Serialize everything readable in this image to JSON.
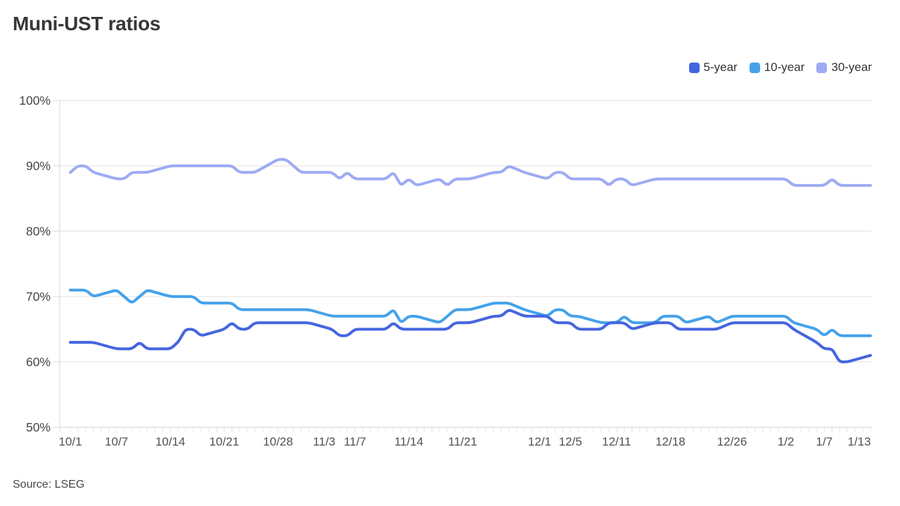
{
  "header": {
    "title": "Muni-UST ratios"
  },
  "footer": {
    "source": "Source: LSEG"
  },
  "theme": {
    "background": "#ffffff",
    "grid_color": "#ececec",
    "axis_color": "#e2e2e2",
    "tick_color": "#e9e9e9",
    "y_label_color": "#454545",
    "x_label_color": "#515151",
    "title_color": "#373737"
  },
  "chart_data": {
    "type": "line",
    "title": "Muni-UST ratios",
    "xlabel": "",
    "ylabel": "",
    "grid": "horizontal",
    "legend_position": "top-right",
    "ylim": [
      50,
      100
    ],
    "y_ticks": [
      {
        "label": "100%",
        "value": 100
      },
      {
        "label": "90%",
        "value": 90
      },
      {
        "label": "80%",
        "value": 80
      },
      {
        "label": "70%",
        "value": 70
      },
      {
        "label": "60%",
        "value": 60
      },
      {
        "label": "50%",
        "value": 50
      }
    ],
    "x_total_days": 104,
    "x_tick_labels": [
      {
        "label": "10/1",
        "day": 0
      },
      {
        "label": "10/7",
        "day": 6
      },
      {
        "label": "10/14",
        "day": 13
      },
      {
        "label": "10/21",
        "day": 20
      },
      {
        "label": "10/28",
        "day": 27
      },
      {
        "label": "11/3",
        "day": 33
      },
      {
        "label": "11/7",
        "day": 37
      },
      {
        "label": "11/14",
        "day": 44
      },
      {
        "label": "11/21",
        "day": 51
      },
      {
        "label": "12/1",
        "day": 61
      },
      {
        "label": "12/5",
        "day": 65
      },
      {
        "label": "12/11",
        "day": 71
      },
      {
        "label": "12/18",
        "day": 78
      },
      {
        "label": "12/26",
        "day": 86
      },
      {
        "label": "1/2",
        "day": 93
      },
      {
        "label": "1/7",
        "day": 98
      },
      {
        "label": "1/13",
        "day": 104
      }
    ],
    "dates": [
      "10/1",
      "10/2",
      "10/3",
      "10/4",
      "10/7",
      "10/8",
      "10/9",
      "10/10",
      "10/11",
      "10/14",
      "10/15",
      "10/16",
      "10/17",
      "10/18",
      "10/21",
      "10/22",
      "10/23",
      "10/24",
      "10/25",
      "10/28",
      "10/29",
      "10/30",
      "10/31",
      "11/1",
      "11/4",
      "11/5",
      "11/6",
      "11/7",
      "11/8",
      "11/11",
      "11/12",
      "11/13",
      "11/14",
      "11/15",
      "11/18",
      "11/19",
      "11/20",
      "11/21",
      "11/22",
      "11/25",
      "11/26",
      "11/27",
      "11/29",
      "12/2",
      "12/3",
      "12/4",
      "12/5",
      "12/6",
      "12/9",
      "12/10",
      "12/11",
      "12/12",
      "12/13",
      "12/16",
      "12/17",
      "12/18",
      "12/19",
      "12/20",
      "12/23",
      "12/24",
      "12/26",
      "12/27",
      "12/30",
      "12/31",
      "1/2",
      "1/3",
      "1/6",
      "1/7",
      "1/8",
      "1/9",
      "1/10",
      "1/13"
    ],
    "day_offsets": [
      0,
      1,
      2,
      3,
      6,
      7,
      8,
      9,
      10,
      13,
      14,
      15,
      16,
      17,
      20,
      21,
      22,
      23,
      24,
      27,
      28,
      29,
      30,
      31,
      34,
      35,
      36,
      37,
      38,
      41,
      42,
      43,
      44,
      45,
      48,
      49,
      50,
      51,
      52,
      55,
      56,
      57,
      59,
      62,
      63,
      64,
      65,
      66,
      69,
      70,
      71,
      72,
      73,
      76,
      77,
      78,
      79,
      80,
      83,
      84,
      86,
      87,
      90,
      91,
      93,
      94,
      97,
      98,
      99,
      100,
      101,
      104
    ],
    "series": [
      {
        "name": "5-year",
        "color": "#4565e0",
        "values": [
          63,
          63,
          63,
          63,
          62,
          62,
          62,
          63,
          62,
          62,
          63,
          65,
          65,
          64,
          65,
          66,
          65,
          65,
          66,
          66,
          66,
          66,
          66,
          66,
          65,
          64,
          64,
          65,
          65,
          65,
          66,
          65,
          65,
          65,
          65,
          65,
          66,
          66,
          66,
          67,
          67,
          68,
          67,
          67,
          66,
          66,
          66,
          65,
          65,
          66,
          66,
          66,
          65,
          66,
          66,
          66,
          65,
          65,
          65,
          65,
          66,
          66,
          66,
          66,
          66,
          65,
          63,
          62,
          62,
          60,
          60,
          61
        ]
      },
      {
        "name": "10-year",
        "color": "#45a2ea",
        "values": [
          71,
          71,
          71,
          70,
          71,
          70,
          69,
          70,
          71,
          70,
          70,
          70,
          70,
          69,
          69,
          69,
          68,
          68,
          68,
          68,
          68,
          68,
          68,
          68,
          67,
          67,
          67,
          67,
          67,
          67,
          68,
          66,
          67,
          67,
          66,
          67,
          68,
          68,
          68,
          69,
          69,
          69,
          68,
          67,
          68,
          68,
          67,
          67,
          66,
          66,
          66,
          67,
          66,
          66,
          67,
          67,
          67,
          66,
          67,
          66,
          67,
          67,
          67,
          67,
          67,
          66,
          65,
          64,
          65,
          64,
          64,
          64
        ]
      },
      {
        "name": "30-year",
        "color": "#9dabf3",
        "values": [
          89,
          90,
          90,
          89,
          88,
          88,
          89,
          89,
          89,
          90,
          90,
          90,
          90,
          90,
          90,
          90,
          89,
          89,
          89,
          91,
          91,
          90,
          89,
          89,
          89,
          88,
          89,
          88,
          88,
          88,
          89,
          87,
          88,
          87,
          88,
          87,
          88,
          88,
          88,
          89,
          89,
          90,
          89,
          88,
          89,
          89,
          88,
          88,
          88,
          87,
          88,
          88,
          87,
          88,
          88,
          88,
          88,
          88,
          88,
          88,
          88,
          88,
          88,
          88,
          88,
          87,
          87,
          87,
          88,
          87,
          87,
          87
        ]
      }
    ]
  }
}
